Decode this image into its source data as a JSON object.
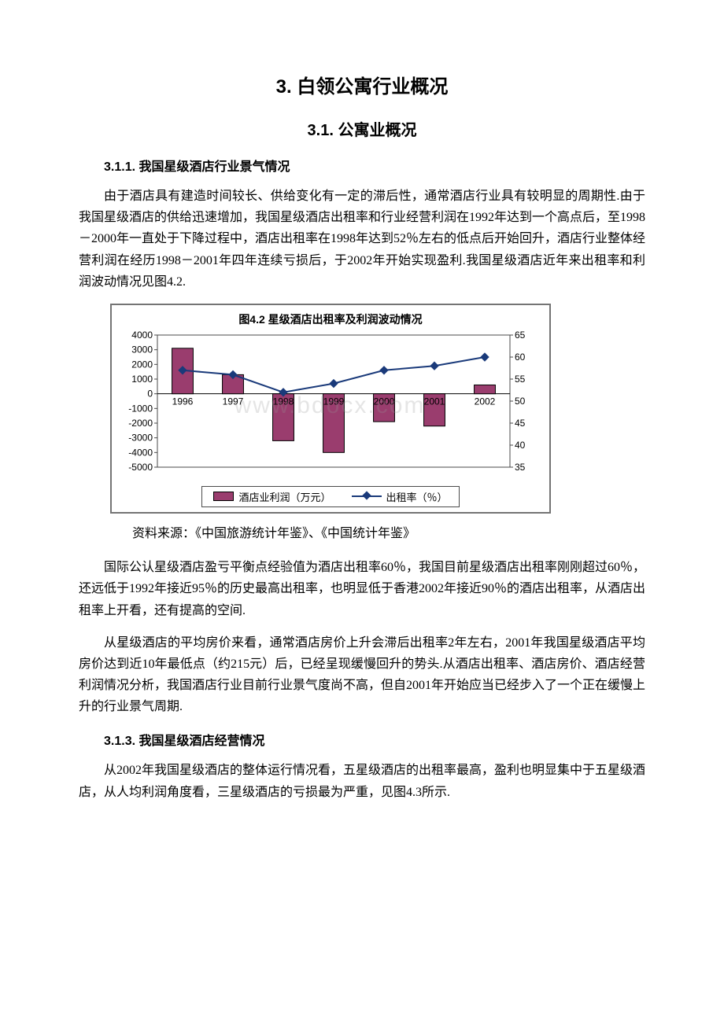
{
  "doc": {
    "h1": "3. 白领公寓行业概况",
    "h2": "3.1. 公寓业概况",
    "h3_1": "3.1.1. 我国星级酒店行业景气情况",
    "p1": "由于酒店具有建造时间较长、供给变化有一定的滞后性，通常酒店行业具有较明显的周期性.由于我国星级酒店的供给迅速增加，我国星级酒店出租率和行业经营利润在1992年达到一个高点后，至1998－2000年一直处于下降过程中，酒店出租率在1998年达到52％左右的低点后开始回升，酒店行业整体经营利润在经历1998－2001年四年连续亏损后，于2002年开始实现盈利.我国星级酒店近年来出租率和利润波动情况见图4.2.",
    "source": "资料来源：《中国旅游统计年鉴》、《中国统计年鉴》",
    "p2": "国际公认星级酒店盈亏平衡点经验值为酒店出租率60％，我国目前星级酒店出租率刚刚超过60％，还远低于1992年接近95％的历史最高出租率，也明显低于香港2002年接近90％的酒店出租率，从酒店出租率上开看，还有提高的空间.",
    "p3": "从星级酒店的平均房价来看，通常酒店房价上升会滞后出租率2年左右，2001年我国星级酒店平均房价达到近10年最低点（约215元）后，已经呈现缓慢回升的势头.从酒店出租率、酒店房价、酒店经营利润情况分析，我国酒店行业目前行业景气度尚不高，但自2001年开始应当已经步入了一个正在缓慢上升的行业景气周期.",
    "h3_2": "3.1.3. 我国星级酒店经营情况",
    "p4": "从2002年我国星级酒店的整体运行情况看，五星级酒店的出租率最高，盈利也明显集中于五星级酒店，从人均利润角度看，三星级酒店的亏损最为严重，见图4.3所示."
  },
  "chart": {
    "title": "图4.2  星级酒店出租率及利润波动情况",
    "categories": [
      "1996",
      "1997",
      "1998",
      "1999",
      "2000",
      "2001",
      "2002"
    ],
    "bar_values": [
      3100,
      1300,
      -3200,
      -4000,
      -1900,
      -2200,
      600
    ],
    "line_values": [
      57,
      56,
      52,
      54,
      57,
      58,
      60
    ],
    "left_axis": {
      "min": -5000,
      "max": 4000,
      "step": 1000
    },
    "right_axis": {
      "min": 35,
      "max": 65,
      "step": 5
    },
    "bar_color": "#9a3d6e",
    "bar_border": "#000000",
    "line_color": "#1a3a7a",
    "grid_border": "#4a4a4a",
    "background": "#ffffff",
    "legend_bar": "酒店业利润（万元）",
    "legend_line": "出租率（％）",
    "axis_fontsize": 12,
    "watermark": "www.bdocx.com"
  }
}
